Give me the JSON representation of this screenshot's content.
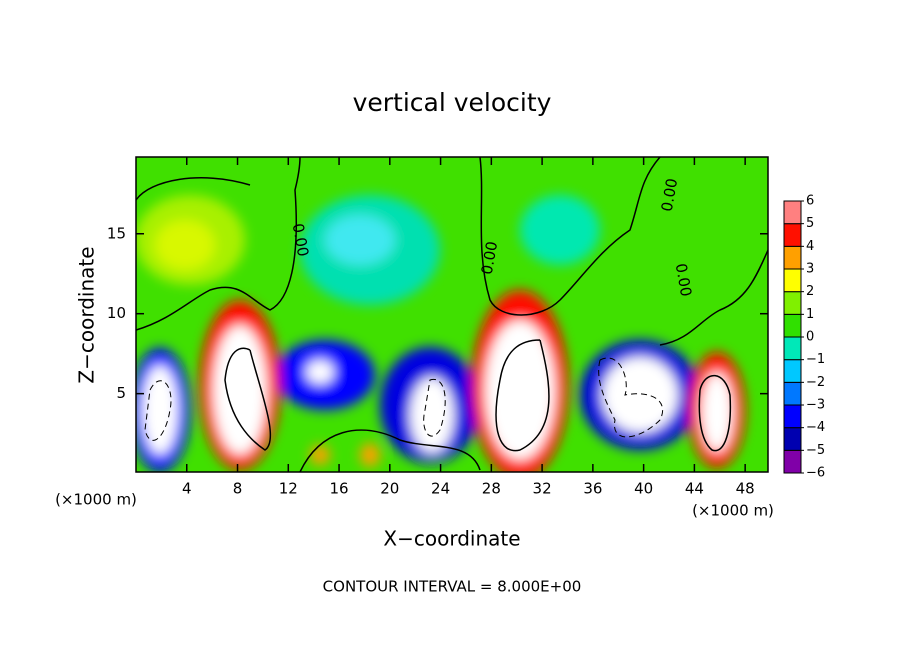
{
  "chart_data": {
    "type": "contour",
    "title": "vertical velocity",
    "x_label": "X−coordinate",
    "y_label": "Z−coordinate",
    "x_unit_label": "(×1000 m)",
    "xlim": [
      0,
      49.8
    ],
    "xticks": [
      4,
      8,
      12,
      16,
      20,
      24,
      28,
      32,
      36,
      40,
      44,
      48
    ],
    "ylim": [
      0.1,
      19.8
    ],
    "yticks": [
      5,
      10,
      15
    ],
    "contour_label": "0.00",
    "footnote": "CONTOUR INTERVAL = 8.000E+00",
    "colorbar": {
      "ticks": [
        -6,
        -5,
        -4,
        -3,
        -2,
        -1,
        0,
        1,
        2,
        3,
        4,
        5,
        6
      ],
      "tick_labels": [
        "−6",
        "−5",
        "−4",
        "−3",
        "−2",
        "−1",
        "0",
        "1",
        "2",
        "3",
        "4",
        "5",
        "6"
      ],
      "colors": [
        "#8000a8",
        "#0000b0",
        "#0000ff",
        "#0078ff",
        "#00c8ff",
        "#00e8b8",
        "#30e000",
        "#80f000",
        "#ffff00",
        "#ffa000",
        "#ff1000",
        "#ff8080"
      ]
    }
  }
}
